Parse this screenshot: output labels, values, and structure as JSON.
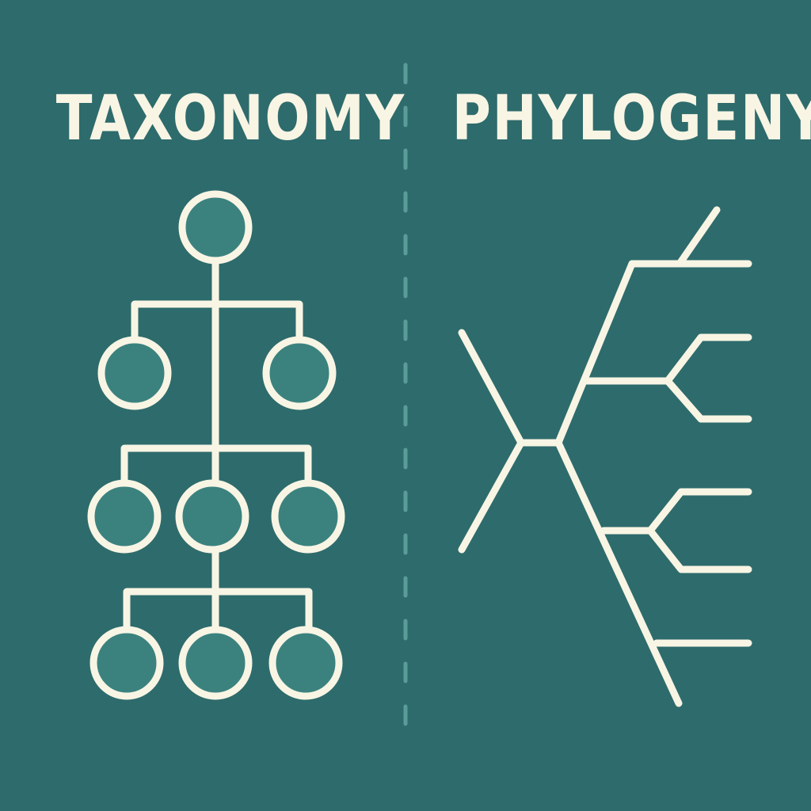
{
  "colors": {
    "background": "#2e6b6c",
    "line": "#f8f5e4",
    "node_fill": "#3b827f",
    "divider": "#5a9c98"
  },
  "left_panel": {
    "title": "TAXONOMY",
    "diagram": "hierarchical-tree"
  },
  "right_panel": {
    "title": "PHYLOGENY",
    "diagram": "branching-cladogram"
  },
  "divider": {
    "style": "dashed"
  }
}
